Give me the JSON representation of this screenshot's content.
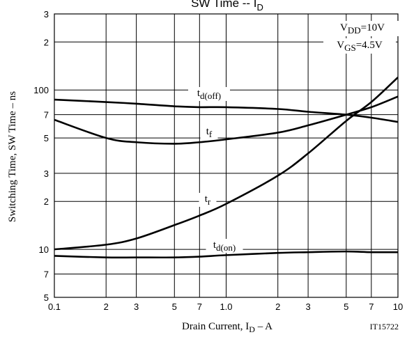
{
  "chart_data": {
    "type": "line",
    "title": {
      "main": "SW Time  --  I",
      "sub": "D"
    },
    "xlabel": {
      "main": "Drain Current, I",
      "sub": "D",
      "tail": "  –  A"
    },
    "ylabel": "Switching Time, SW Time  –  ns",
    "annotation": "IT15722",
    "conditions": [
      {
        "main": "V",
        "sub": "DD",
        "tail": "=10V"
      },
      {
        "main": "V",
        "sub": "GS",
        "tail": "=4.5V"
      }
    ],
    "log_x": true,
    "log_y": true,
    "grid": true,
    "color": "#000000",
    "x": [
      0.1,
      0.2,
      0.3,
      0.5,
      0.7,
      1,
      2,
      3,
      5,
      7,
      10
    ],
    "series": [
      {
        "name": "t",
        "subscript": "d(off)",
        "values": [
          87,
          84,
          82,
          79,
          78,
          78,
          76,
          73,
          70,
          67,
          63
        ]
      },
      {
        "name": "t",
        "subscript": "f",
        "values": [
          65,
          50,
          47,
          46,
          47,
          49,
          54,
          60,
          70,
          78,
          91
        ]
      },
      {
        "name": "t",
        "subscript": "r",
        "values": [
          10,
          10.7,
          11.7,
          14.2,
          16.3,
          19.3,
          29,
          40,
          64,
          84,
          120
        ]
      },
      {
        "name": "t",
        "subscript": "d(on)",
        "values": [
          9.1,
          8.9,
          8.9,
          8.9,
          9.0,
          9.2,
          9.5,
          9.6,
          9.7,
          9.6,
          9.6
        ]
      }
    ],
    "xlim": [
      0.1,
      10
    ],
    "xticks": [
      0.1,
      {
        "value": 0.2,
        "label": "2"
      },
      {
        "value": 0.3,
        "label": "3"
      },
      {
        "value": 0.5,
        "label": "5"
      },
      {
        "value": 0.7,
        "label": "7"
      },
      {
        "value": 1,
        "label": "1.0"
      },
      2,
      3,
      5,
      7,
      10
    ],
    "ylim": [
      5,
      300
    ],
    "yticks": [
      {
        "value": 300,
        "label": "3"
      },
      {
        "value": 200,
        "label": "2"
      },
      100,
      {
        "value": 70,
        "label": "7"
      },
      {
        "value": 50,
        "label": "5"
      },
      {
        "value": 30,
        "label": "3"
      },
      {
        "value": 20,
        "label": "2"
      },
      10,
      7,
      5
    ]
  }
}
